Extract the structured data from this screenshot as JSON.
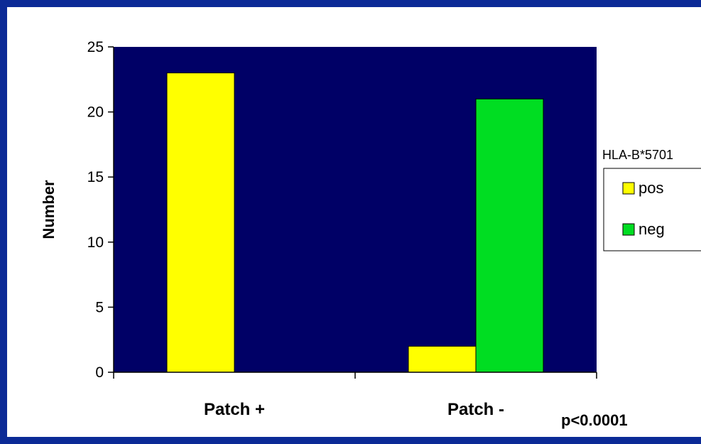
{
  "chart_data": {
    "type": "bar",
    "categories": [
      "Patch +",
      "Patch -"
    ],
    "series": [
      {
        "name": "pos",
        "values": [
          23,
          2
        ],
        "color": "#ffff00"
      },
      {
        "name": "neg",
        "values": [
          0,
          21
        ],
        "color": "#00dd22"
      }
    ],
    "xlabel": "",
    "ylabel": "Number",
    "ylim": [
      0,
      25
    ],
    "yticks": [
      "0",
      "5",
      "10",
      "15",
      "20",
      "25"
    ],
    "legend": {
      "title": "HLA-B*5701",
      "position": "right",
      "entries": [
        "pos",
        "neg"
      ]
    },
    "annotation": "p<0.0001",
    "grid": false,
    "plot_background": "#000066",
    "frame_color": "#0b2a96"
  }
}
